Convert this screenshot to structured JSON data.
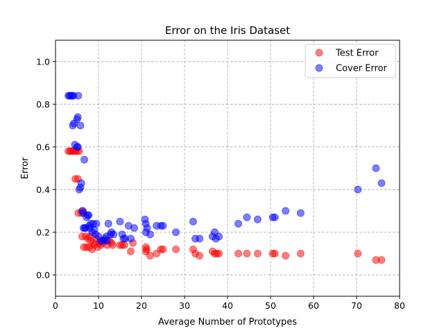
{
  "chart_data": {
    "type": "scatter",
    "title": "Error on the Iris Dataset",
    "xlabel": "Average Number of Prototypes",
    "ylabel": "Error",
    "xlim": [
      0,
      80
    ],
    "ylim": [
      -0.1,
      1.1
    ],
    "xticks": [
      0,
      10,
      20,
      30,
      40,
      50,
      60,
      70,
      80
    ],
    "yticks": [
      0.0,
      0.2,
      0.4,
      0.6,
      0.8,
      1.0
    ],
    "xtick_labels": [
      "0",
      "10",
      "20",
      "30",
      "40",
      "50",
      "60",
      "70",
      "80"
    ],
    "ytick_labels": [
      "0.0",
      "0.2",
      "0.4",
      "0.6",
      "0.8",
      "1.0"
    ],
    "grid": true,
    "legend_position": "top-right",
    "series": [
      {
        "name": "Test Error",
        "color": "#ff0000",
        "points": [
          [
            3.0,
            0.58
          ],
          [
            3.4,
            0.58
          ],
          [
            3.8,
            0.58
          ],
          [
            4.2,
            0.58
          ],
          [
            4.6,
            0.58
          ],
          [
            5.0,
            0.58
          ],
          [
            5.5,
            0.58
          ],
          [
            4.6,
            0.45
          ],
          [
            5.2,
            0.45
          ],
          [
            5.3,
            0.29
          ],
          [
            6.0,
            0.29
          ],
          [
            6.4,
            0.3
          ],
          [
            6.2,
            0.18
          ],
          [
            6.6,
            0.13
          ],
          [
            7.0,
            0.18
          ],
          [
            7.2,
            0.13
          ],
          [
            7.5,
            0.17
          ],
          [
            7.8,
            0.13
          ],
          [
            8.0,
            0.18
          ],
          [
            8.2,
            0.16
          ],
          [
            8.5,
            0.12
          ],
          [
            8.8,
            0.15
          ],
          [
            9.0,
            0.14
          ],
          [
            9.5,
            0.17
          ],
          [
            9.8,
            0.13
          ],
          [
            10.2,
            0.15
          ],
          [
            10.5,
            0.14
          ],
          [
            11.0,
            0.15
          ],
          [
            11.5,
            0.16
          ],
          [
            12.0,
            0.14
          ],
          [
            12.5,
            0.16
          ],
          [
            13.0,
            0.15
          ],
          [
            13.3,
            0.14
          ],
          [
            15.0,
            0.14
          ],
          [
            15.5,
            0.14
          ],
          [
            16.0,
            0.14
          ],
          [
            17.5,
            0.11
          ],
          [
            18.0,
            0.15
          ],
          [
            21.0,
            0.13
          ],
          [
            21.2,
            0.12
          ],
          [
            21.0,
            0.11
          ],
          [
            22.0,
            0.09
          ],
          [
            23.5,
            0.1
          ],
          [
            24.5,
            0.12
          ],
          [
            25.0,
            0.12
          ],
          [
            28.0,
            0.12
          ],
          [
            32.0,
            0.12
          ],
          [
            32.5,
            0.1
          ],
          [
            33.5,
            0.09
          ],
          [
            36.5,
            0.11
          ],
          [
            37.0,
            0.1
          ],
          [
            37.5,
            0.1
          ],
          [
            38.0,
            0.1
          ],
          [
            42.5,
            0.1
          ],
          [
            44.5,
            0.1
          ],
          [
            47.0,
            0.1
          ],
          [
            50.5,
            0.1
          ],
          [
            51.0,
            0.1
          ],
          [
            53.5,
            0.09
          ],
          [
            57.0,
            0.1
          ],
          [
            70.3,
            0.1
          ],
          [
            74.5,
            0.07
          ],
          [
            75.8,
            0.07
          ]
        ]
      },
      {
        "name": "Cover Error",
        "color": "#0000ff",
        "points": [
          [
            3.0,
            0.84
          ],
          [
            3.3,
            0.84
          ],
          [
            3.6,
            0.84
          ],
          [
            3.9,
            0.84
          ],
          [
            4.2,
            0.84
          ],
          [
            5.3,
            0.84
          ],
          [
            4.0,
            0.7
          ],
          [
            4.3,
            0.71
          ],
          [
            5.0,
            0.73
          ],
          [
            5.2,
            0.74
          ],
          [
            5.8,
            0.7
          ],
          [
            4.5,
            0.61
          ],
          [
            5.0,
            0.6
          ],
          [
            5.2,
            0.6
          ],
          [
            6.7,
            0.54
          ],
          [
            5.5,
            0.4
          ],
          [
            5.8,
            0.41
          ],
          [
            6.0,
            0.43
          ],
          [
            6.2,
            0.3
          ],
          [
            6.5,
            0.29
          ],
          [
            6.5,
            0.22
          ],
          [
            6.8,
            0.22
          ],
          [
            7.0,
            0.22
          ],
          [
            7.2,
            0.27
          ],
          [
            7.5,
            0.28
          ],
          [
            7.7,
            0.28
          ],
          [
            7.8,
            0.23
          ],
          [
            8.0,
            0.22
          ],
          [
            8.2,
            0.24
          ],
          [
            8.5,
            0.2
          ],
          [
            8.8,
            0.24
          ],
          [
            9.0,
            0.21
          ],
          [
            9.3,
            0.19
          ],
          [
            9.5,
            0.24
          ],
          [
            10.0,
            0.18
          ],
          [
            10.5,
            0.16
          ],
          [
            11.0,
            0.16
          ],
          [
            11.5,
            0.17
          ],
          [
            11.8,
            0.18
          ],
          [
            12.0,
            0.16
          ],
          [
            12.3,
            0.24
          ],
          [
            12.8,
            0.19
          ],
          [
            13.0,
            0.2
          ],
          [
            13.5,
            0.19
          ],
          [
            15.0,
            0.25
          ],
          [
            15.5,
            0.19
          ],
          [
            15.8,
            0.17
          ],
          [
            16.2,
            0.17
          ],
          [
            17.0,
            0.23
          ],
          [
            17.5,
            0.17
          ],
          [
            18.3,
            0.22
          ],
          [
            20.8,
            0.26
          ],
          [
            21.0,
            0.24
          ],
          [
            21.0,
            0.2
          ],
          [
            21.3,
            0.22
          ],
          [
            22.0,
            0.19
          ],
          [
            23.5,
            0.23
          ],
          [
            24.5,
            0.23
          ],
          [
            25.0,
            0.23
          ],
          [
            28.0,
            0.2
          ],
          [
            32.0,
            0.25
          ],
          [
            32.5,
            0.17
          ],
          [
            33.5,
            0.17
          ],
          [
            36.5,
            0.18
          ],
          [
            37.0,
            0.2
          ],
          [
            37.3,
            0.17
          ],
          [
            38.0,
            0.18
          ],
          [
            42.5,
            0.24
          ],
          [
            44.5,
            0.27
          ],
          [
            47.0,
            0.26
          ],
          [
            50.5,
            0.27
          ],
          [
            51.0,
            0.27
          ],
          [
            53.5,
            0.3
          ],
          [
            57.0,
            0.29
          ],
          [
            70.3,
            0.4
          ],
          [
            74.5,
            0.5
          ],
          [
            75.8,
            0.43
          ]
        ]
      }
    ]
  }
}
